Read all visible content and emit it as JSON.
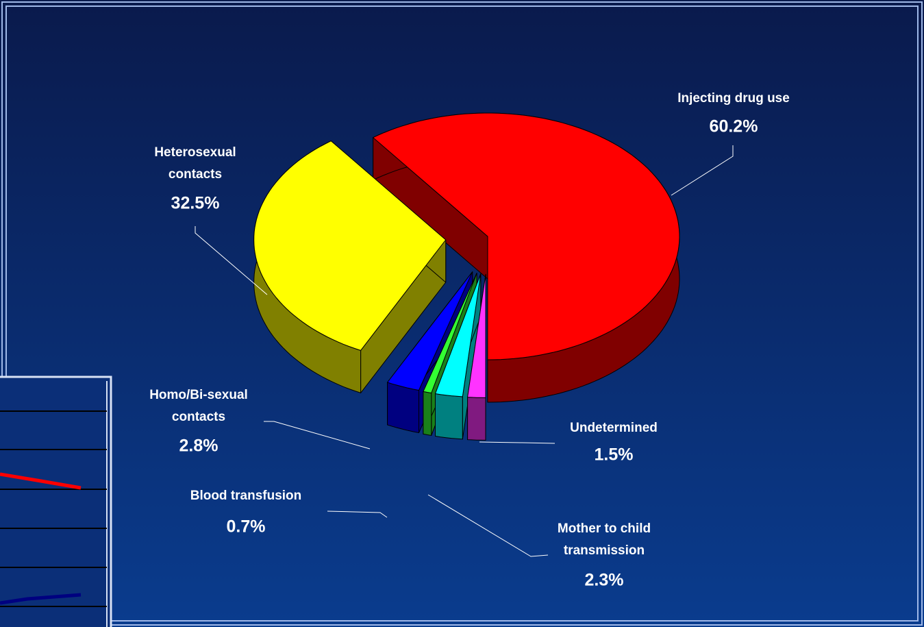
{
  "chart_data": {
    "type": "pie",
    "categories": [
      "Injecting drug use",
      "Undetermined",
      "Mother to child\ntransmission",
      "Blood transfusion",
      "Homo/Bi-sexual\ncontacts",
      "Heterosexual\ncontacts"
    ],
    "values": [
      60.2,
      1.5,
      2.3,
      0.7,
      2.8,
      32.5
    ],
    "value_labels": [
      "60.2%",
      "1.5%",
      "2.3%",
      "0.7%",
      "2.8%",
      "32.5%"
    ],
    "colors": [
      "#ff0000",
      "#ff33ff",
      "#00ffff",
      "#33ff33",
      "#0000ff",
      "#ffff00"
    ]
  }
}
